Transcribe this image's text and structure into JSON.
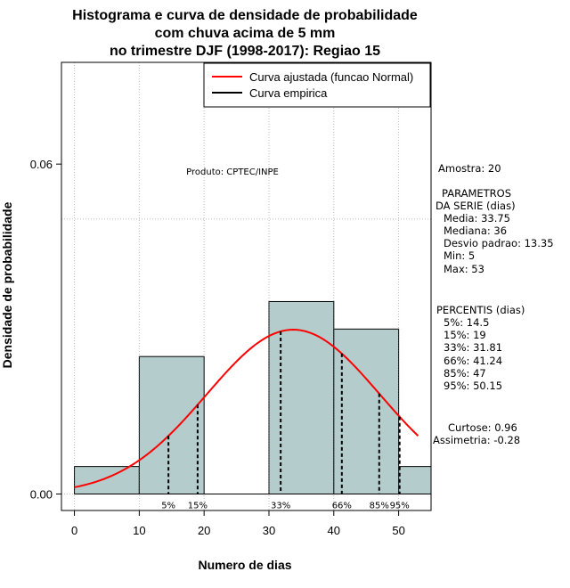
{
  "chart_data": {
    "type": "bar",
    "title_lines": [
      "Histograma e curva de densidade de probabilidade",
      "com chuva acima de 5 mm",
      "no trimestre DJF (1998-2017): Regiao 15"
    ],
    "xlabel": "Numero de dias",
    "ylabel": "Densidade de probabilidade",
    "xlim": [
      -2,
      55
    ],
    "ylim": [
      -0.003,
      0.0785
    ],
    "x_ticks": [
      0,
      10,
      20,
      30,
      40,
      50
    ],
    "y_ticks": [
      0.0,
      0.06
    ],
    "y_tick_labels": [
      "0.00",
      "0.06"
    ],
    "grid": true,
    "grid_x": [
      0,
      10,
      20,
      30,
      40,
      50
    ],
    "grid_y": [
      0.0,
      0.05
    ],
    "bin_edges": [
      0,
      10,
      20,
      30,
      40,
      50,
      55
    ],
    "densities": [
      0.005,
      0.025,
      0.0,
      0.035,
      0.03,
      0.005
    ],
    "bar_color": "#b4cccc",
    "series": [
      {
        "name": "Curva ajustada (funcao Normal)",
        "kind": "normal",
        "color": "#ff0000",
        "mean": 33.75,
        "sd": 13.35,
        "x_range": [
          0,
          53
        ]
      },
      {
        "name": "Curva empirica",
        "color": "#000000"
      }
    ],
    "percentile_lines": [
      {
        "label": "5%",
        "x": 14.5
      },
      {
        "label": "15%",
        "x": 19
      },
      {
        "label": "33%",
        "x": 31.81
      },
      {
        "label": "66%",
        "x": 41.24
      },
      {
        "label": "85%",
        "x": 47
      },
      {
        "label": "95%",
        "x": 50.15
      }
    ],
    "legend_position": "top-right",
    "annotation": "Produto: CPTEC/INPE"
  },
  "stats": {
    "amostra": "Amostra: 20",
    "param_title_1": "PARAMETROS",
    "param_title_2": "DA SERIE (dias)",
    "media": "Media: 33.75",
    "mediana": "Mediana: 36",
    "desvio": "Desvio padrao: 13.35",
    "min": "Min: 5",
    "max": "Max: 53",
    "percentis_title": "PERCENTIS (dias)",
    "p5": "5%: 14.5",
    "p15": "15%: 19",
    "p33": "33%: 31.81",
    "p66": "66%: 41.24",
    "p85": "85%: 47",
    "p95": "95%: 50.15",
    "curtose": "Curtose: 0.96",
    "assimetria": "Assimetria: -0.28"
  }
}
